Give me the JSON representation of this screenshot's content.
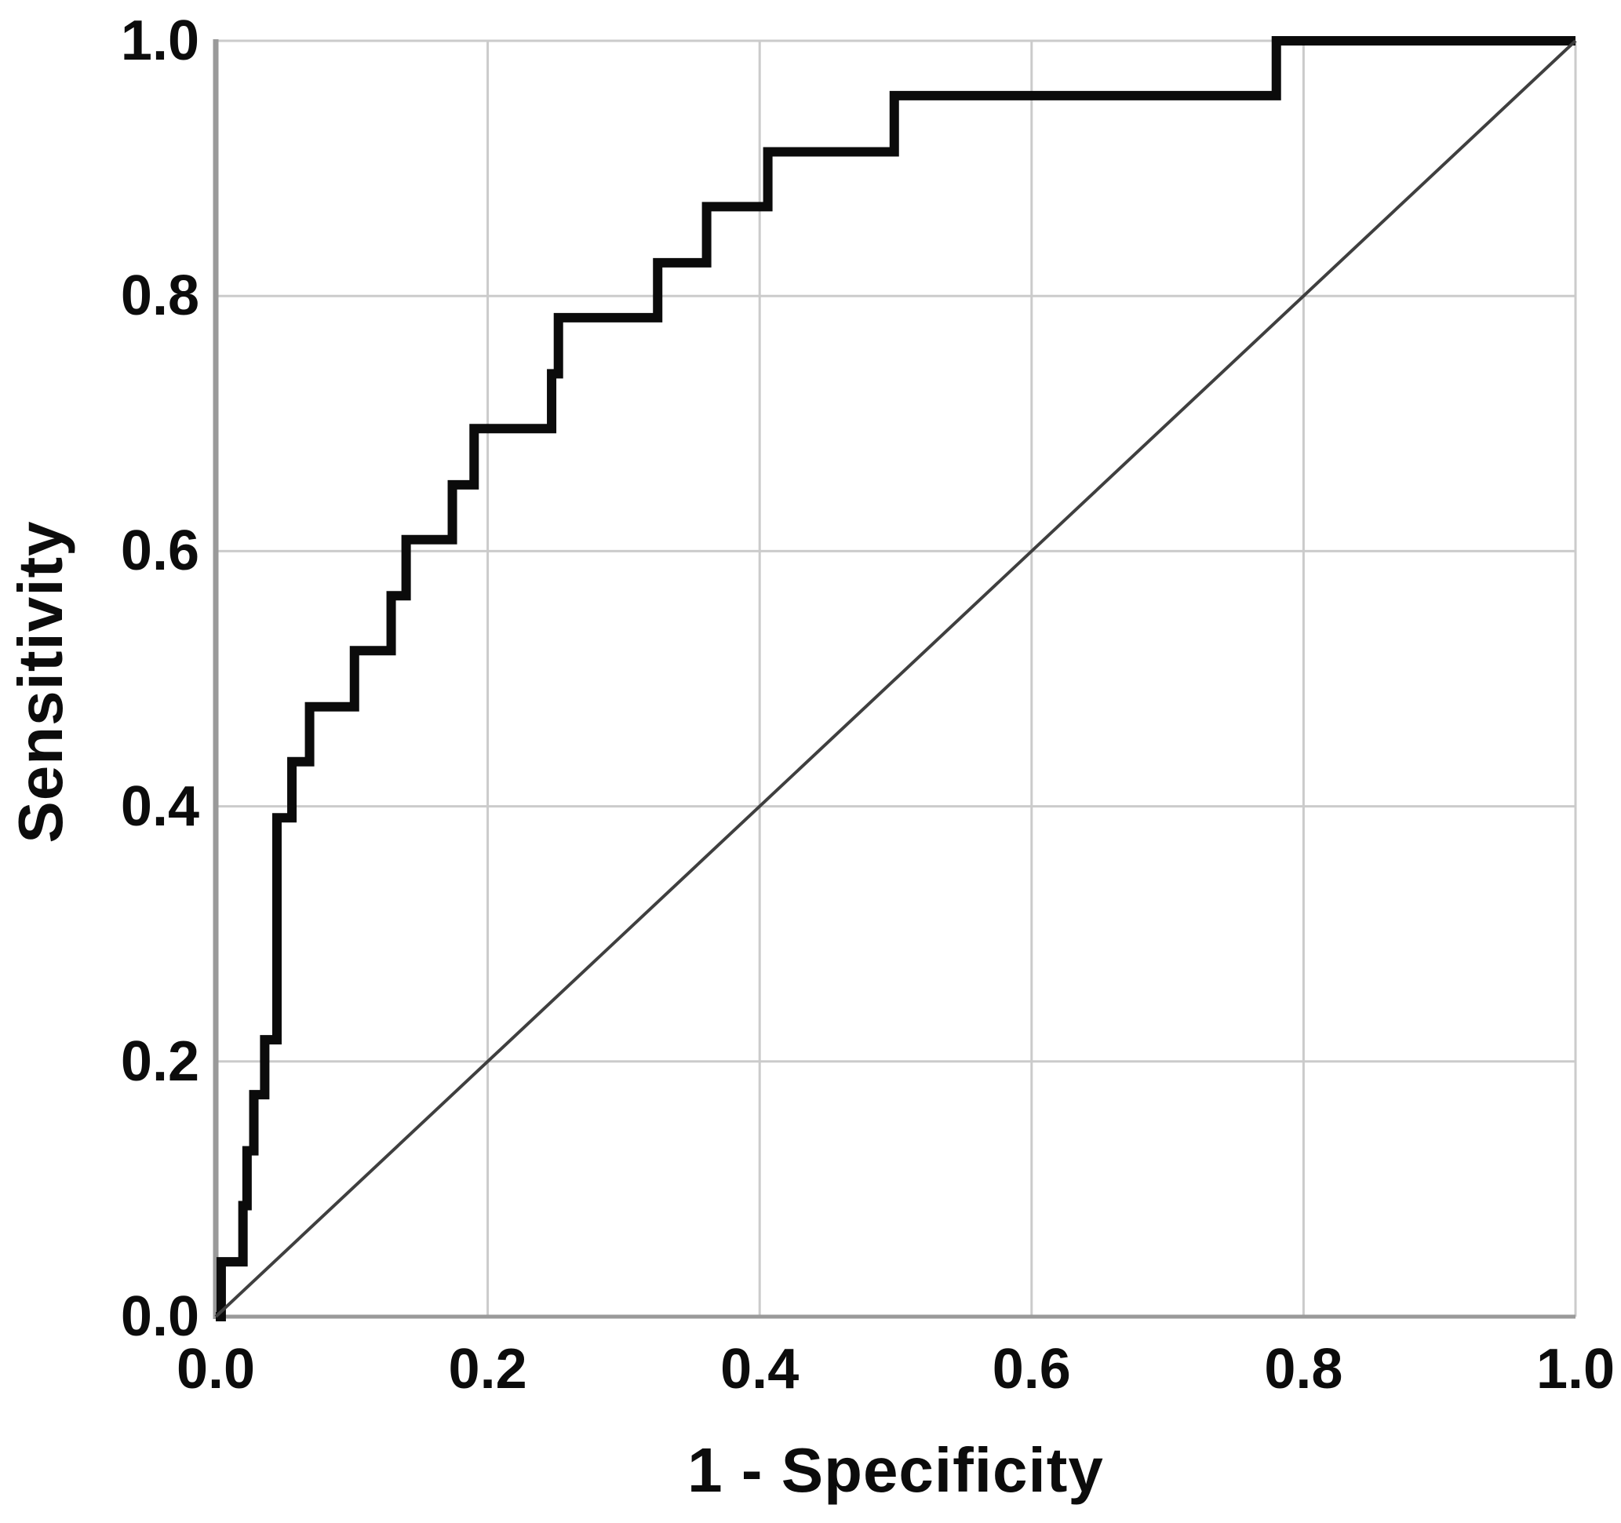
{
  "chart": {
    "x_axis_title": "1 - Specificity",
    "y_axis_title": "Sensitivity",
    "x_tick_labels": [
      "0.0",
      "0.2",
      "0.4",
      "0.6",
      "0.8",
      "1.0"
    ],
    "y_tick_labels": [
      "0.0",
      "0.2",
      "0.4",
      "0.6",
      "0.8",
      "1.0"
    ]
  },
  "colors": {
    "background": "#ffffff",
    "roc_curve": "#0b0b0b",
    "reference_line": "#3f3f3f",
    "gridline": "#cbcbcb",
    "axis_line": "#9a9a9a",
    "text": "#0c0c0c"
  },
  "chart_data": {
    "type": "line",
    "subtype": "roc-step-curve",
    "title": "",
    "xlabel": "1 - Specificity",
    "ylabel": "Sensitivity",
    "xlim": [
      0.0,
      1.0
    ],
    "ylim": [
      0.0,
      1.0
    ],
    "x_ticks": [
      0.0,
      0.2,
      0.4,
      0.6,
      0.8,
      1.0
    ],
    "y_ticks": [
      0.0,
      0.2,
      0.4,
      0.6,
      0.8,
      1.0
    ],
    "grid": true,
    "legend_position": "none",
    "series": [
      {
        "name": "ROC curve",
        "style": "step",
        "color": "#0b0b0b",
        "stroke_width": 12,
        "points": [
          [
            0.0,
            0.0
          ],
          [
            0.004,
            0.0
          ],
          [
            0.004,
            0.043
          ],
          [
            0.02,
            0.043
          ],
          [
            0.02,
            0.087
          ],
          [
            0.023,
            0.087
          ],
          [
            0.023,
            0.13
          ],
          [
            0.028,
            0.13
          ],
          [
            0.028,
            0.174
          ],
          [
            0.036,
            0.174
          ],
          [
            0.036,
            0.217
          ],
          [
            0.045,
            0.217
          ],
          [
            0.045,
            0.391
          ],
          [
            0.056,
            0.391
          ],
          [
            0.056,
            0.435
          ],
          [
            0.069,
            0.435
          ],
          [
            0.069,
            0.478
          ],
          [
            0.102,
            0.478
          ],
          [
            0.102,
            0.522
          ],
          [
            0.129,
            0.522
          ],
          [
            0.129,
            0.565
          ],
          [
            0.14,
            0.565
          ],
          [
            0.14,
            0.609
          ],
          [
            0.174,
            0.609
          ],
          [
            0.174,
            0.652
          ],
          [
            0.19,
            0.652
          ],
          [
            0.19,
            0.696
          ],
          [
            0.247,
            0.696
          ],
          [
            0.247,
            0.739
          ],
          [
            0.252,
            0.739
          ],
          [
            0.252,
            0.783
          ],
          [
            0.325,
            0.783
          ],
          [
            0.325,
            0.826
          ],
          [
            0.361,
            0.826
          ],
          [
            0.361,
            0.87
          ],
          [
            0.406,
            0.87
          ],
          [
            0.406,
            0.913
          ],
          [
            0.499,
            0.913
          ],
          [
            0.499,
            0.957
          ],
          [
            0.78,
            0.957
          ],
          [
            0.78,
            1.0
          ],
          [
            1.0,
            1.0
          ]
        ]
      },
      {
        "name": "Reference diagonal",
        "style": "line",
        "color": "#3f3f3f",
        "stroke_width": 4,
        "points": [
          [
            0.0,
            0.0
          ],
          [
            1.0,
            1.0
          ]
        ]
      }
    ]
  }
}
